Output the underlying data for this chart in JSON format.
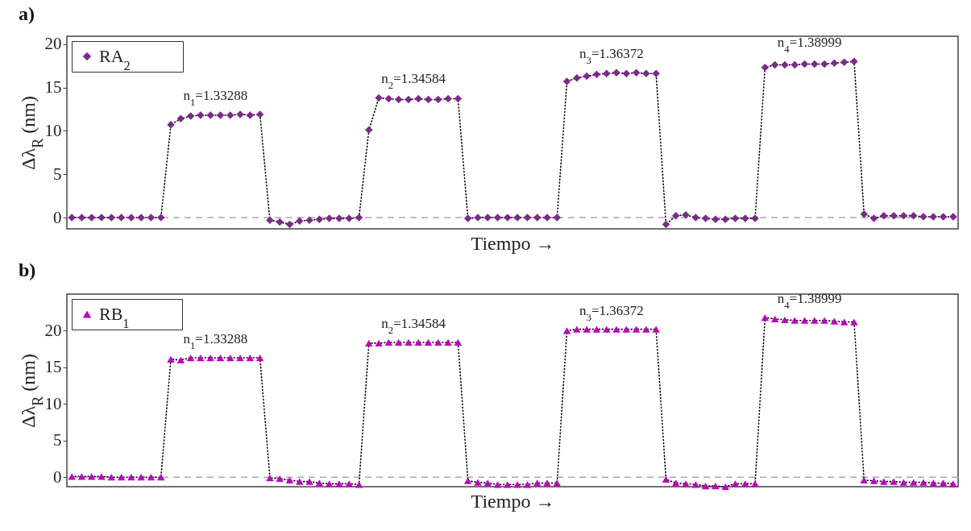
{
  "chart_data": [
    {
      "type": "line",
      "title": "a)",
      "xlabel": "Tiempo →",
      "ylabel": "Δλ$_{R}$ (nm)",
      "categories": [
        null,
        null,
        null,
        null,
        null,
        null,
        null,
        null,
        null,
        null,
        null,
        null,
        null,
        null,
        null,
        null,
        null,
        null,
        null,
        null,
        null,
        null,
        null,
        null,
        null,
        null,
        null,
        null,
        null,
        null,
        null,
        null,
        null,
        null,
        null,
        null,
        null,
        null,
        null,
        null,
        null,
        null,
        null,
        null,
        null,
        null,
        null,
        null,
        null,
        null,
        null,
        null,
        null,
        null,
        null,
        null,
        null,
        null,
        null,
        null,
        null,
        null,
        null,
        null,
        null,
        null,
        null,
        null,
        null,
        null,
        null,
        null,
        null,
        null,
        null,
        null,
        null,
        null,
        null,
        null,
        null,
        null,
        null,
        null,
        null,
        null,
        null,
        null,
        null,
        null
      ],
      "series": [
        {
          "name": "RA$_{2}$",
          "color": "#7b2a8a",
          "marker": "diamond",
          "line_style": "dotted",
          "values": [
            0,
            0,
            0,
            0,
            0,
            0,
            0,
            0,
            0,
            0,
            10.7,
            11.4,
            11.7,
            11.8,
            11.8,
            11.8,
            11.8,
            11.9,
            11.8,
            11.9,
            -0.3,
            -0.5,
            -0.8,
            -0.4,
            -0.3,
            -0.2,
            -0.1,
            -0.1,
            -0.1,
            0,
            10.1,
            13.8,
            13.7,
            13.6,
            13.6,
            13.7,
            13.6,
            13.6,
            13.7,
            13.7,
            -0.1,
            0,
            0,
            0,
            0,
            0,
            0,
            0,
            0,
            0,
            15.7,
            16.1,
            16.3,
            16.5,
            16.6,
            16.7,
            16.6,
            16.7,
            16.6,
            16.6,
            -0.8,
            0.2,
            0.3,
            0,
            -0.1,
            -0.2,
            -0.2,
            -0.1,
            -0.1,
            -0.1,
            17.3,
            17.6,
            17.6,
            17.6,
            17.7,
            17.7,
            17.7,
            17.8,
            17.9,
            18.0,
            0.4,
            -0.1,
            0.2,
            0.2,
            0.2,
            0.2,
            0.1,
            0.1,
            0.1,
            0.1
          ]
        }
      ],
      "ylim": [
        -1.3,
        20.9
      ],
      "yticks": [
        0,
        5,
        10,
        15,
        20
      ],
      "legend": "top left",
      "ref_lines": [
        {
          "axis": "y",
          "value": 0,
          "color": "#aaaaaa",
          "line_style": "dashed"
        }
      ],
      "annotations": [
        "n$_{1}$=1.33288",
        "n$_{2}$=1.34584",
        "n$_{3}$=1.36372",
        "n$_{4}$=1.38999"
      ]
    },
    {
      "type": "line",
      "title": "b)",
      "xlabel": "Tiempo →",
      "ylabel": "Δλ$_{R}$ (nm)",
      "categories": [
        null,
        null,
        null,
        null,
        null,
        null,
        null,
        null,
        null,
        null,
        null,
        null,
        null,
        null,
        null,
        null,
        null,
        null,
        null,
        null,
        null,
        null,
        null,
        null,
        null,
        null,
        null,
        null,
        null,
        null,
        null,
        null,
        null,
        null,
        null,
        null,
        null,
        null,
        null,
        null,
        null,
        null,
        null,
        null,
        null,
        null,
        null,
        null,
        null,
        null,
        null,
        null,
        null,
        null,
        null,
        null,
        null,
        null,
        null,
        null,
        null,
        null,
        null,
        null,
        null,
        null,
        null,
        null,
        null,
        null,
        null,
        null,
        null,
        null,
        null,
        null,
        null,
        null,
        null,
        null,
        null,
        null,
        null,
        null,
        null,
        null,
        null,
        null,
        null,
        null
      ],
      "series": [
        {
          "name": "RB$_{1}$",
          "color": "#c000c0",
          "marker": "triangle",
          "line_style": "dotted",
          "values": [
            0.1,
            0.1,
            0.1,
            0.1,
            0,
            0,
            0,
            0,
            0,
            0,
            16.1,
            16.0,
            16.3,
            16.3,
            16.3,
            16.3,
            16.3,
            16.3,
            16.3,
            16.3,
            -0.1,
            -0.2,
            -0.4,
            -0.6,
            -0.6,
            -0.8,
            -0.9,
            -0.9,
            -0.9,
            -1.0,
            18.3,
            18.3,
            18.4,
            18.4,
            18.4,
            18.4,
            18.4,
            18.4,
            18.4,
            18.4,
            -0.5,
            -0.7,
            -0.8,
            -1.0,
            -1.0,
            -1.0,
            -1.0,
            -0.8,
            -0.8,
            -0.8,
            20.0,
            20.2,
            20.2,
            20.2,
            20.2,
            20.2,
            20.2,
            20.2,
            20.2,
            20.2,
            -0.3,
            -0.8,
            -0.9,
            -1.0,
            -1.2,
            -1.2,
            -1.3,
            -0.9,
            -0.9,
            -0.9,
            21.8,
            21.6,
            21.5,
            21.4,
            21.4,
            21.4,
            21.4,
            21.3,
            21.2,
            21.2,
            -0.4,
            -0.5,
            -0.6,
            -0.6,
            -0.7,
            -0.7,
            -0.7,
            -0.8,
            -0.8,
            -0.9
          ]
        }
      ],
      "ylim": [
        -1.3,
        25
      ],
      "yticks": [
        0,
        5,
        10,
        15,
        20
      ],
      "legend": "top left",
      "ref_lines": [
        {
          "axis": "y",
          "value": 0,
          "color": "#aaaaaa",
          "line_style": "dashed"
        }
      ],
      "annotations": [
        "n$_{1}$=1.33288",
        "n$_{2}$=1.34584",
        "n$_{3}$=1.36372",
        "n$_{4}$=1.38999"
      ]
    }
  ]
}
